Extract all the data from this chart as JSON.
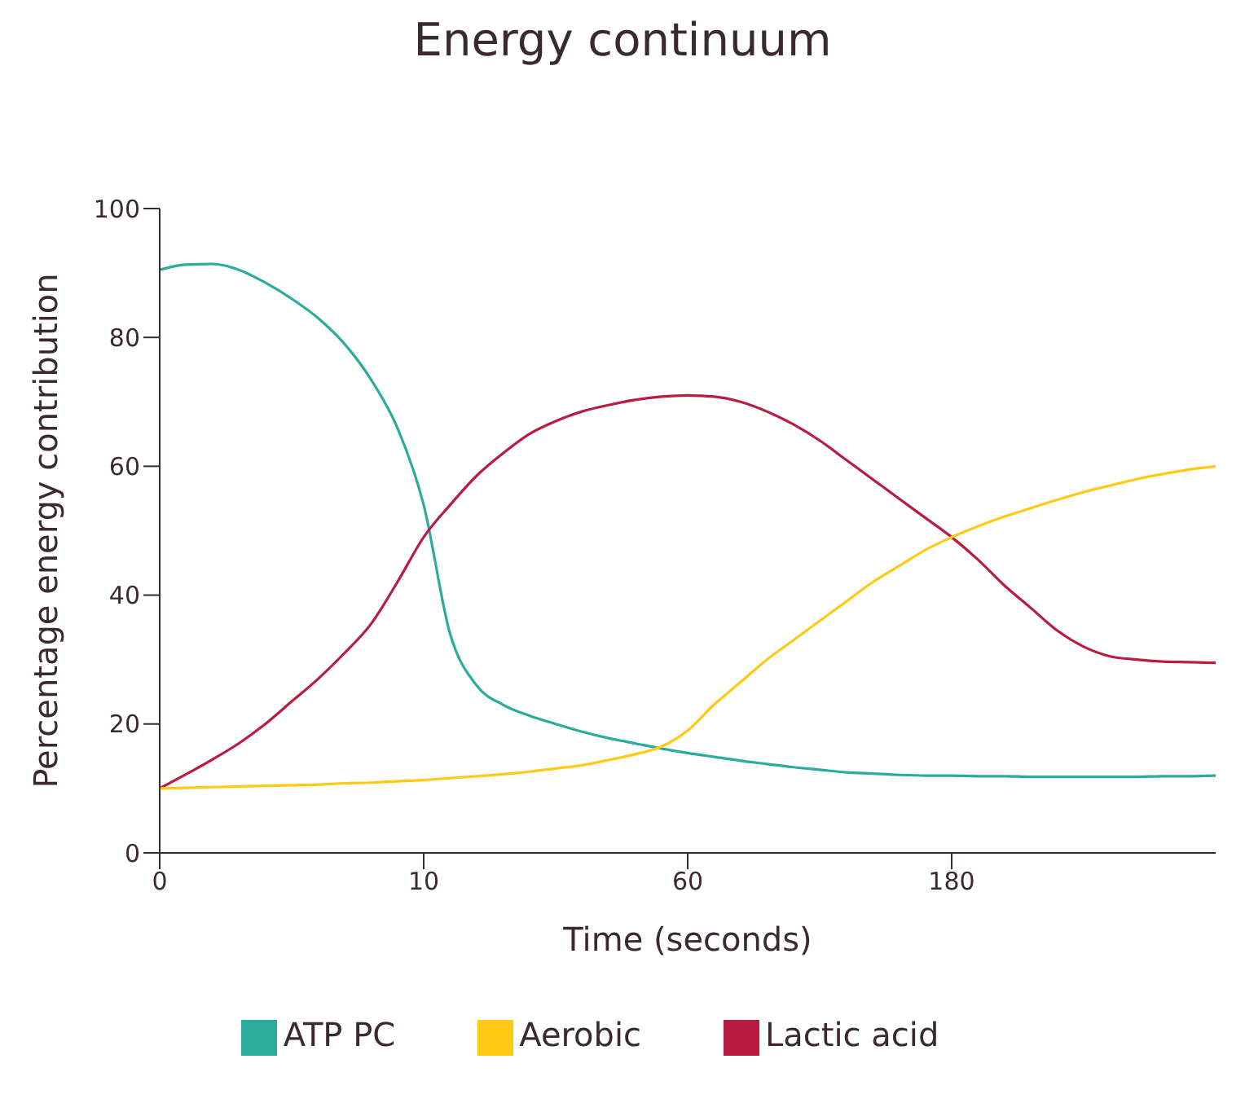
{
  "chart_data": {
    "type": "line",
    "title": "Energy continuum",
    "xlabel": "Time (seconds)",
    "ylabel": "Percentage energy contribution",
    "categories": [
      "0",
      null,
      null,
      null,
      null,
      null,
      null,
      null,
      null,
      null,
      "10",
      null,
      null,
      null,
      null,
      null,
      null,
      null,
      null,
      null,
      "60",
      null,
      null,
      null,
      null,
      null,
      null,
      null,
      null,
      null,
      "180",
      null,
      null,
      null,
      null,
      null,
      null,
      null,
      null,
      null,
      null
    ],
    "ylim": [
      0,
      100
    ],
    "yticks": [
      0,
      20,
      40,
      60,
      80,
      100
    ],
    "grid": false,
    "legend": "bottom",
    "marker": "none",
    "line_style": "solid",
    "series": [
      {
        "name": "ATP PC",
        "color": "#2aac9c",
        "values": [
          90.5,
          91.3,
          91.4,
          90.5,
          88.5,
          86,
          83,
          79,
          73.5,
          66,
          54,
          34,
          26,
          23,
          21.3,
          20,
          18.8,
          17.8,
          17,
          16.2,
          15.5,
          14.9,
          14.3,
          13.8,
          13.3,
          12.9,
          12.5,
          12.3,
          12.1,
          12,
          12,
          11.9,
          11.9,
          11.8,
          11.8,
          11.8,
          11.8,
          11.8,
          11.9,
          11.9,
          12
        ]
      },
      {
        "name": "Lactic acid",
        "color": "#b81c40",
        "values": [
          10,
          12.2,
          14.5,
          17,
          20,
          23.5,
          27,
          31,
          35.5,
          42,
          49,
          54,
          58.5,
          62,
          65,
          67,
          68.5,
          69.5,
          70.3,
          70.8,
          71,
          70.8,
          70,
          68.5,
          66.5,
          64,
          61,
          58,
          55,
          52,
          49,
          45.5,
          41.5,
          38,
          34.5,
          32,
          30.5,
          30,
          29.7,
          29.6,
          29.5
        ]
      },
      {
        "name": "Aerobic",
        "color": "#ffc914",
        "values": [
          10,
          10.1,
          10.2,
          10.3,
          10.4,
          10.5,
          10.6,
          10.8,
          10.9,
          11.1,
          11.3,
          11.6,
          11.9,
          12.2,
          12.6,
          13.1,
          13.6,
          14.4,
          15.3,
          16.5,
          19,
          23,
          26.5,
          30,
          33,
          36,
          39,
          42,
          44.5,
          47,
          49,
          50.7,
          52.2,
          53.5,
          54.8,
          56,
          57,
          58,
          58.8,
          59.5,
          60
        ]
      }
    ]
  }
}
